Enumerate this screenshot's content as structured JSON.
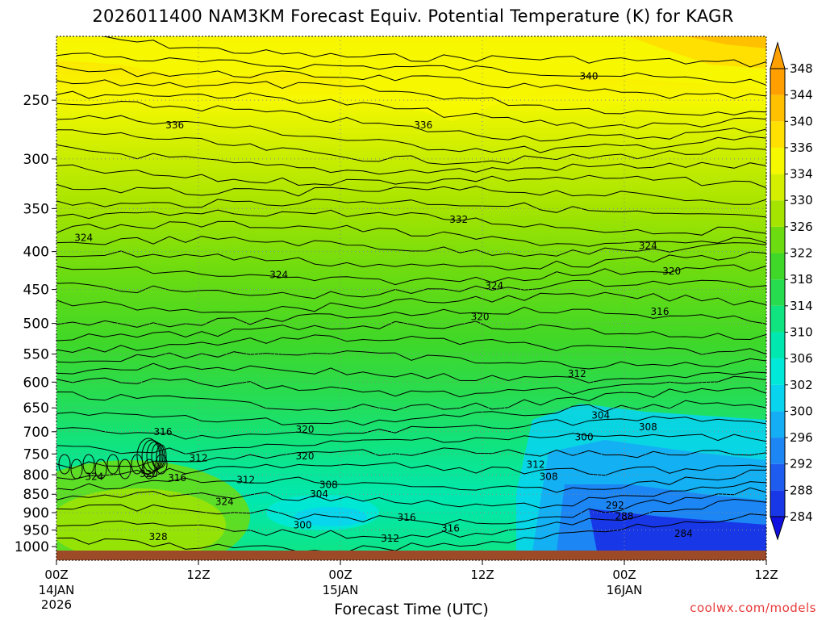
{
  "chart_data": {
    "type": "contour",
    "title": "2026011400 NAM3KM Forecast Equiv. Potential Temperature (K) for KAGR",
    "xlabel": "Forecast Time (UTC)",
    "ylabel": "",
    "y_axis_scale": "log-pressure, inverted",
    "ylim": [
      1000,
      200
    ],
    "y_ticks": [
      250,
      300,
      350,
      400,
      450,
      500,
      550,
      600,
      650,
      700,
      750,
      800,
      850,
      900,
      950,
      1000
    ],
    "x_ticks": [
      {
        "label": "00Z",
        "sub1": "14JAN",
        "sub2": "2026",
        "hour": 0
      },
      {
        "label": "12Z",
        "sub1": "",
        "sub2": "",
        "hour": 12
      },
      {
        "label": "00Z",
        "sub1": "15JAN",
        "sub2": "",
        "hour": 24
      },
      {
        "label": "12Z",
        "sub1": "",
        "sub2": "",
        "hour": 36
      },
      {
        "label": "00Z",
        "sub1": "16JAN",
        "sub2": "",
        "hour": 48
      },
      {
        "label": "12Z",
        "sub1": "",
        "sub2": "",
        "hour": 60
      }
    ],
    "colorbar": {
      "levels": [
        284,
        288,
        292,
        296,
        300,
        302,
        306,
        310,
        314,
        318,
        322,
        326,
        330,
        334,
        336,
        340,
        344,
        348
      ],
      "colors": [
        "#1010e0",
        "#1838e8",
        "#1e5cf0",
        "#1c86f4",
        "#14aef4",
        "#08d4ee",
        "#00e8d8",
        "#00e8b0",
        "#10e480",
        "#28dc50",
        "#40d828",
        "#6cdc10",
        "#a4e400",
        "#d4f000",
        "#f6f800",
        "#ffe000",
        "#ffc000",
        "#ffa000"
      ],
      "extend": "both"
    },
    "contour_labels": [
      {
        "v": "336",
        "hour": 10.0,
        "p": 270
      },
      {
        "v": "336",
        "hour": 31.0,
        "p": 270
      },
      {
        "v": "340",
        "hour": 45.0,
        "p": 232
      },
      {
        "v": "332",
        "hour": 34.0,
        "p": 362
      },
      {
        "v": "324",
        "hour": 2.3,
        "p": 383
      },
      {
        "v": "324",
        "hour": 18.8,
        "p": 430
      },
      {
        "v": "324",
        "hour": 37.0,
        "p": 445
      },
      {
        "v": "324",
        "hour": 50.0,
        "p": 393
      },
      {
        "v": "320",
        "hour": 52.0,
        "p": 425
      },
      {
        "v": "320",
        "hour": 35.8,
        "p": 490
      },
      {
        "v": "316",
        "hour": 51.0,
        "p": 482
      },
      {
        "v": "312",
        "hour": 44.0,
        "p": 585
      },
      {
        "v": "304",
        "hour": 46.0,
        "p": 665
      },
      {
        "v": "308",
        "hour": 50.0,
        "p": 690
      },
      {
        "v": "300",
        "hour": 44.6,
        "p": 712
      },
      {
        "v": "316",
        "hour": 9.0,
        "p": 700
      },
      {
        "v": "320",
        "hour": 21.0,
        "p": 695
      },
      {
        "v": "320",
        "hour": 21.0,
        "p": 755
      },
      {
        "v": "312",
        "hour": 12.0,
        "p": 760
      },
      {
        "v": "312",
        "hour": 16.0,
        "p": 813
      },
      {
        "v": "308",
        "hour": 23.0,
        "p": 825
      },
      {
        "v": "304",
        "hour": 22.2,
        "p": 850
      },
      {
        "v": "300",
        "hour": 20.8,
        "p": 935
      },
      {
        "v": "316",
        "hour": 29.6,
        "p": 913
      },
      {
        "v": "316",
        "hour": 33.3,
        "p": 945
      },
      {
        "v": "312",
        "hour": 28.2,
        "p": 975
      },
      {
        "v": "312",
        "hour": 40.5,
        "p": 775
      },
      {
        "v": "308",
        "hour": 41.6,
        "p": 805
      },
      {
        "v": "292",
        "hour": 47.2,
        "p": 880
      },
      {
        "v": "288",
        "hour": 48.0,
        "p": 910
      },
      {
        "v": "284",
        "hour": 53.0,
        "p": 960
      },
      {
        "v": "324",
        "hour": 3.2,
        "p": 805
      },
      {
        "v": "320",
        "hour": 7.8,
        "p": 798
      },
      {
        "v": "316",
        "hour": 10.2,
        "p": 808
      },
      {
        "v": "324",
        "hour": 14.2,
        "p": 870
      },
      {
        "v": "328",
        "hour": 8.6,
        "p": 970
      }
    ]
  },
  "credit": "coolwx.com/models"
}
